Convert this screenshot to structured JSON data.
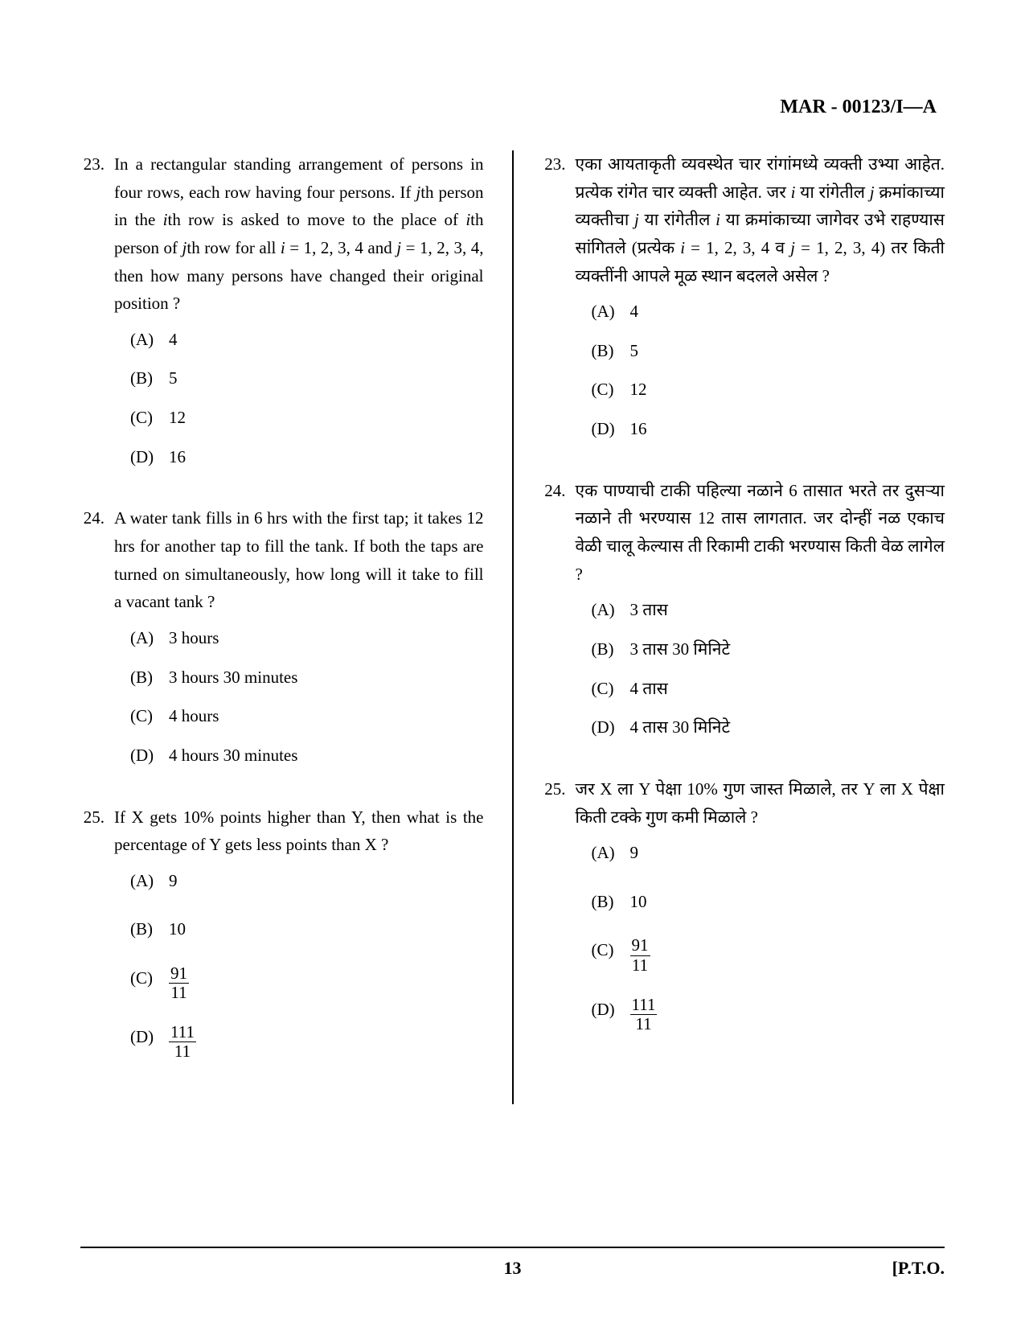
{
  "header": "MAR - 00123/I—A",
  "footer": {
    "page_num": "13",
    "pto": "[P.T.O."
  },
  "left": {
    "q23": {
      "num": "23.",
      "text_parts": [
        "In a rectangular standing arrangement of persons in four rows, each row having four persons. If ",
        "j",
        "th person in the ",
        "i",
        "th row is asked to move to the place of ",
        "i",
        "th person of ",
        "j",
        "th row for all ",
        "i",
        " = 1, 2, 3, 4 and ",
        "j",
        " = 1, 2, 3, 4, then how many persons have changed their original position ?"
      ],
      "options": {
        "a": {
          "label": "(A)",
          "value": "4"
        },
        "b": {
          "label": "(B)",
          "value": "5"
        },
        "c": {
          "label": "(C)",
          "value": "12"
        },
        "d": {
          "label": "(D)",
          "value": "16"
        }
      }
    },
    "q24": {
      "num": "24.",
      "text": "A water tank fills in 6 hrs with the first tap; it takes 12 hrs for another tap to fill the tank. If both the taps are turned on simultaneously, how long will it take to fill a vacant tank ?",
      "options": {
        "a": {
          "label": "(A)",
          "value": "3 hours"
        },
        "b": {
          "label": "(B)",
          "value": "3 hours 30 minutes"
        },
        "c": {
          "label": "(C)",
          "value": "4 hours"
        },
        "d": {
          "label": "(D)",
          "value": "4 hours 30 minutes"
        }
      }
    },
    "q25": {
      "num": "25.",
      "text": "If X gets 10% points higher than Y, then what is the percentage of Y gets less points than X ?",
      "options": {
        "a": {
          "label": "(A)",
          "value": "9"
        },
        "b": {
          "label": "(B)",
          "value": "10"
        },
        "c": {
          "label": "(C)",
          "num": "91",
          "den": "11"
        },
        "d": {
          "label": "(D)",
          "num": "111",
          "den": "11"
        }
      }
    }
  },
  "right": {
    "q23": {
      "num": "23.",
      "text_parts": [
        "एका आयताकृती व्यवस्थेत चार रांगांमध्ये व्यक्ती उभ्या आहेत. प्रत्येक रांगेत चार व्यक्ती आहेत. जर ",
        "i",
        " या रांगेतील ",
        "j",
        " क्रमांकाच्या व्यक्तीचा ",
        "j",
        " या रांगेतील ",
        "i",
        " या क्रमांकाच्या जागेवर उभे राहण्यास सांगितले (प्रत्येक ",
        "i",
        " = 1, 2, 3, 4 व ",
        "j",
        " = 1, 2, 3, 4) तर किती व्यक्तींनी आपले मूळ स्थान बदलले असेल ?"
      ],
      "options": {
        "a": {
          "label": "(A)",
          "value": "4"
        },
        "b": {
          "label": "(B)",
          "value": "5"
        },
        "c": {
          "label": "(C)",
          "value": "12"
        },
        "d": {
          "label": "(D)",
          "value": "16"
        }
      }
    },
    "q24": {
      "num": "24.",
      "text": "एक पाण्याची टाकी पहिल्या नळाने 6 तासात भरते तर दुसऱ्या नळाने ती भरण्यास 12 तास लागतात. जर दोन्हीं नळ एकाच वेळी चालू केल्यास ती रिकामी टाकी भरण्यास किती वेळ लागेल ?",
      "options": {
        "a": {
          "label": "(A)",
          "value": "3 तास"
        },
        "b": {
          "label": "(B)",
          "value": "3 तास 30 मिनिटे"
        },
        "c": {
          "label": "(C)",
          "value": "4 तास"
        },
        "d": {
          "label": "(D)",
          "value": "4 तास 30 मिनिटे"
        }
      }
    },
    "q25": {
      "num": "25.",
      "text": "जर X ला Y पेक्षा 10% गुण जास्त मिळाले, तर Y ला X पेक्षा किती टक्के गुण कमी मिळाले ?",
      "options": {
        "a": {
          "label": "(A)",
          "value": "9"
        },
        "b": {
          "label": "(B)",
          "value": "10"
        },
        "c": {
          "label": "(C)",
          "num": "91",
          "den": "11"
        },
        "d": {
          "label": "(D)",
          "num": "111",
          "den": "11"
        }
      }
    }
  }
}
